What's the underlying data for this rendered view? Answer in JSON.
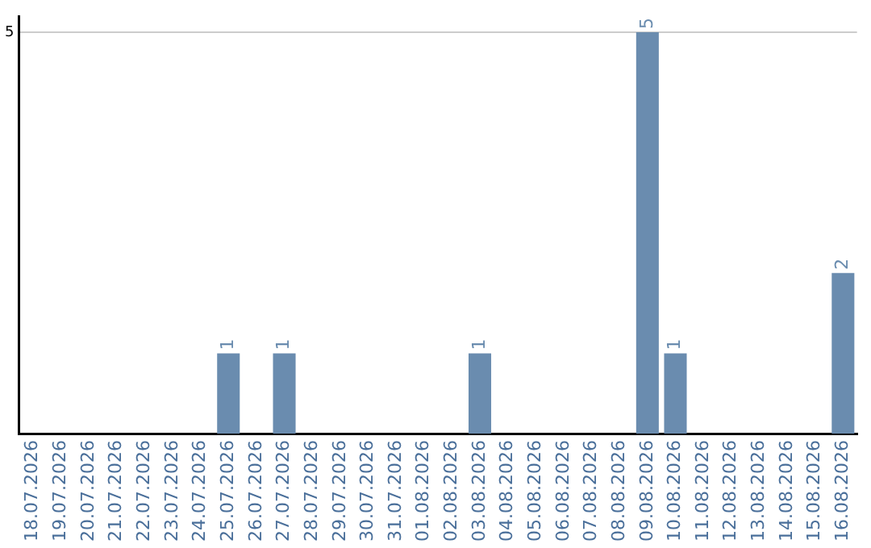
{
  "chart_data": {
    "type": "bar",
    "categories": [
      "18.07.2026",
      "19.07.2026",
      "20.07.2026",
      "21.07.2026",
      "22.07.2026",
      "23.07.2026",
      "24.07.2026",
      "25.07.2026",
      "26.07.2026",
      "27.07.2026",
      "28.07.2026",
      "29.07.2026",
      "30.07.2026",
      "31.07.2026",
      "01.08.2026",
      "02.08.2026",
      "03.08.2026",
      "04.08.2026",
      "05.08.2026",
      "06.08.2026",
      "07.08.2026",
      "08.08.2026",
      "09.08.2026",
      "10.08.2026",
      "11.08.2026",
      "12.08.2026",
      "13.08.2026",
      "14.08.2026",
      "15.08.2026",
      "16.08.2026"
    ],
    "values": [
      0,
      0,
      0,
      0,
      0,
      0,
      0,
      1,
      0,
      1,
      0,
      0,
      0,
      0,
      0,
      0,
      1,
      0,
      0,
      0,
      0,
      0,
      5,
      1,
      0,
      0,
      0,
      0,
      0,
      2
    ],
    "value_labels": [
      null,
      null,
      null,
      null,
      null,
      null,
      null,
      "1",
      null,
      "1",
      null,
      null,
      null,
      null,
      null,
      null,
      "1",
      null,
      null,
      null,
      null,
      null,
      "5",
      "1",
      null,
      null,
      null,
      null,
      null,
      "2"
    ],
    "color": "#6a8caf",
    "ylim": [
      0,
      5.2
    ],
    "yticks": [
      5
    ],
    "grid": "y",
    "legend": false
  }
}
